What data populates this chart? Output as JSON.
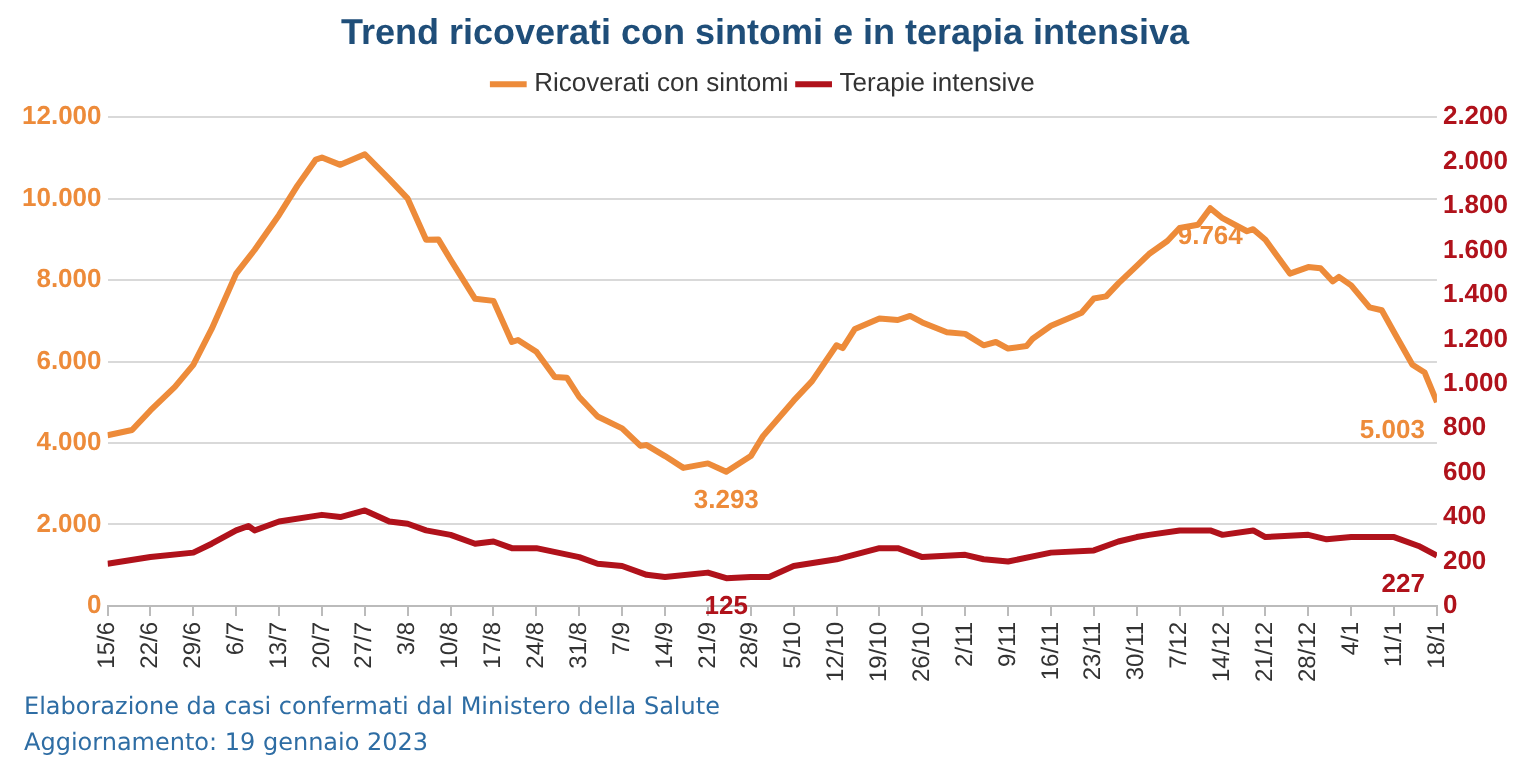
{
  "chart_data": {
    "type": "line",
    "title": "Trend ricoverati con sintomi e in terapia intensiva",
    "legend": "top",
    "grid": "y",
    "marker": "none",
    "xlim": [
      "2022-06-15",
      "2023-01-18"
    ],
    "xticks": [
      {
        "value": "2022-06-15",
        "label": "15/6"
      },
      {
        "value": "2022-06-22",
        "label": "22/6"
      },
      {
        "value": "2022-06-29",
        "label": "29/6"
      },
      {
        "value": "2022-07-06",
        "label": "6/7"
      },
      {
        "value": "2022-07-13",
        "label": "13/7"
      },
      {
        "value": "2022-07-20",
        "label": "20/7"
      },
      {
        "value": "2022-07-27",
        "label": "27/7"
      },
      {
        "value": "2022-08-03",
        "label": "3/8"
      },
      {
        "value": "2022-08-10",
        "label": "10/8"
      },
      {
        "value": "2022-08-17",
        "label": "17/8"
      },
      {
        "value": "2022-08-24",
        "label": "24/8"
      },
      {
        "value": "2022-08-31",
        "label": "31/8"
      },
      {
        "value": "2022-09-07",
        "label": "7/9"
      },
      {
        "value": "2022-09-14",
        "label": "14/9"
      },
      {
        "value": "2022-09-21",
        "label": "21/9"
      },
      {
        "value": "2022-09-28",
        "label": "28/9"
      },
      {
        "value": "2022-10-05",
        "label": "5/10"
      },
      {
        "value": "2022-10-12",
        "label": "12/10"
      },
      {
        "value": "2022-10-19",
        "label": "19/10"
      },
      {
        "value": "2022-10-26",
        "label": "26/10"
      },
      {
        "value": "2022-11-02",
        "label": "2/11"
      },
      {
        "value": "2022-11-09",
        "label": "9/11"
      },
      {
        "value": "2022-11-16",
        "label": "16/11"
      },
      {
        "value": "2022-11-23",
        "label": "23/11"
      },
      {
        "value": "2022-11-30",
        "label": "30/11"
      },
      {
        "value": "2022-12-07",
        "label": "7/12"
      },
      {
        "value": "2022-12-14",
        "label": "14/12"
      },
      {
        "value": "2022-12-21",
        "label": "21/12"
      },
      {
        "value": "2022-12-28",
        "label": "28/12"
      },
      {
        "value": "2023-01-04",
        "label": "4/1"
      },
      {
        "value": "2023-01-11",
        "label": "11/1"
      },
      {
        "value": "2023-01-18",
        "label": "18/1"
      }
    ],
    "ylim": [
      0,
      12000
    ],
    "yticks": [
      0,
      {
        "value": 2000,
        "label": "2.000"
      },
      {
        "value": 4000,
        "label": "4.000"
      },
      {
        "value": 6000,
        "label": "6.000"
      },
      {
        "value": 8000,
        "label": "8.000"
      },
      {
        "value": 10000,
        "label": "10.000"
      },
      {
        "value": 12000,
        "label": "12.000"
      }
    ],
    "y2lim": [
      0,
      2200
    ],
    "y2ticks": [
      0,
      200,
      400,
      600,
      800,
      {
        "value": 1000,
        "label": "1.000"
      },
      {
        "value": 1200,
        "label": "1.200"
      },
      {
        "value": 1400,
        "label": "1.400"
      },
      {
        "value": 1600,
        "label": "1.600"
      },
      {
        "value": 1800,
        "label": "1.800"
      },
      {
        "value": 2000,
        "label": "2.000"
      },
      {
        "value": 2200,
        "label": "2.200"
      }
    ],
    "series": [
      {
        "name": "Ricoverati con sintomi",
        "color": "#ed8b3a",
        "x": [
          "2022-06-15",
          "2022-06-19",
          "2022-06-22",
          "2022-06-26",
          "2022-06-29",
          "2022-07-02",
          "2022-07-06",
          "2022-07-09",
          "2022-07-13",
          "2022-07-16",
          "2022-07-19",
          "2022-07-20",
          "2022-07-23",
          "2022-07-27",
          "2022-07-31",
          "2022-08-03",
          "2022-08-06",
          "2022-08-08",
          "2022-08-10",
          "2022-08-14",
          "2022-08-17",
          "2022-08-20",
          "2022-08-21",
          "2022-08-24",
          "2022-08-27",
          "2022-08-29",
          "2022-08-31",
          "2022-09-03",
          "2022-09-07",
          "2022-09-10",
          "2022-09-11",
          "2022-09-14",
          "2022-09-17",
          "2022-09-21",
          "2022-09-24",
          "2022-09-28",
          "2022-09-30",
          "2022-10-05",
          "2022-10-08",
          "2022-10-12",
          "2022-10-13",
          "2022-10-15",
          "2022-10-19",
          "2022-10-22",
          "2022-10-24",
          "2022-10-26",
          "2022-10-30",
          "2022-11-02",
          "2022-11-05",
          "2022-11-07",
          "2022-11-09",
          "2022-11-12",
          "2022-11-13",
          "2022-11-16",
          "2022-11-19",
          "2022-11-21",
          "2022-11-23",
          "2022-11-25",
          "2022-11-27",
          "2022-11-30",
          "2022-12-02",
          "2022-12-05",
          "2022-12-07",
          "2022-12-10",
          "2022-12-12",
          "2022-12-14",
          "2022-12-18",
          "2022-12-19",
          "2022-12-21",
          "2022-12-25",
          "2022-12-28",
          "2022-12-30",
          "2023-01-01",
          "2023-01-02",
          "2023-01-04",
          "2023-01-07",
          "2023-01-09",
          "2023-01-11",
          "2023-01-14",
          "2023-01-16",
          "2023-01-18"
        ],
        "values": [
          4190,
          4320,
          4800,
          5380,
          5920,
          6800,
          8160,
          8740,
          9600,
          10320,
          10960,
          11010,
          10830,
          11090,
          10480,
          10000,
          8990,
          9000,
          8500,
          7540,
          7490,
          6480,
          6530,
          6240,
          5620,
          5600,
          5130,
          4650,
          4360,
          3930,
          3950,
          3680,
          3390,
          3500,
          3293,
          3680,
          4170,
          5040,
          5520,
          6400,
          6330,
          6800,
          7060,
          7020,
          7120,
          6960,
          6720,
          6680,
          6400,
          6480,
          6320,
          6380,
          6560,
          6880,
          7070,
          7200,
          7550,
          7600,
          7920,
          8350,
          8640,
          8960,
          9280,
          9360,
          9764,
          9520,
          9200,
          9250,
          8990,
          8160,
          8320,
          8290,
          7970,
          8080,
          7870,
          7330,
          7260,
          6720,
          5920,
          5730,
          5003
        ],
        "value_labels": [
          null,
          null,
          null,
          null,
          null,
          null,
          null,
          null,
          null,
          null,
          null,
          null,
          null,
          null,
          null,
          null,
          null,
          null,
          null,
          null,
          null,
          null,
          null,
          null,
          null,
          null,
          null,
          null,
          null,
          null,
          null,
          null,
          null,
          null,
          "3.293",
          null,
          null,
          null,
          null,
          null,
          null,
          null,
          null,
          null,
          null,
          null,
          null,
          null,
          null,
          null,
          null,
          null,
          null,
          null,
          null,
          null,
          null,
          null,
          null,
          null,
          null,
          null,
          null,
          null,
          "9.764",
          null,
          null,
          null,
          null,
          null,
          null,
          null,
          null,
          null,
          null,
          null,
          null,
          null,
          null,
          null,
          "5.003"
        ]
      },
      {
        "name": "Terapie intensive",
        "color": "#b0121b",
        "axis": "y2",
        "x": [
          "2022-06-15",
          "2022-06-22",
          "2022-06-29",
          "2022-07-02",
          "2022-07-06",
          "2022-07-08",
          "2022-07-09",
          "2022-07-13",
          "2022-07-20",
          "2022-07-23",
          "2022-07-27",
          "2022-07-31",
          "2022-08-03",
          "2022-08-06",
          "2022-08-10",
          "2022-08-14",
          "2022-08-17",
          "2022-08-20",
          "2022-08-24",
          "2022-08-31",
          "2022-09-03",
          "2022-09-07",
          "2022-09-11",
          "2022-09-14",
          "2022-09-21",
          "2022-09-24",
          "2022-09-28",
          "2022-10-01",
          "2022-10-05",
          "2022-10-12",
          "2022-10-19",
          "2022-10-22",
          "2022-10-26",
          "2022-11-02",
          "2022-11-05",
          "2022-11-09",
          "2022-11-16",
          "2022-11-23",
          "2022-11-27",
          "2022-11-30",
          "2022-12-02",
          "2022-12-07",
          "2022-12-12",
          "2022-12-14",
          "2022-12-19",
          "2022-12-21",
          "2022-12-28",
          "2022-12-31",
          "2023-01-04",
          "2023-01-11",
          "2023-01-15",
          "2023-01-18"
        ],
        "values": [
          190,
          220,
          240,
          280,
          340,
          360,
          340,
          380,
          410,
          400,
          430,
          380,
          370,
          340,
          320,
          280,
          290,
          260,
          260,
          220,
          190,
          180,
          140,
          130,
          150,
          125,
          130,
          130,
          180,
          210,
          260,
          260,
          220,
          230,
          210,
          200,
          240,
          250,
          290,
          310,
          320,
          340,
          340,
          320,
          340,
          310,
          320,
          300,
          310,
          310,
          270,
          227
        ],
        "value_labels": [
          null,
          null,
          null,
          null,
          null,
          null,
          null,
          null,
          null,
          null,
          null,
          null,
          null,
          null,
          null,
          null,
          null,
          null,
          null,
          null,
          null,
          null,
          null,
          null,
          null,
          "125",
          null,
          null,
          null,
          null,
          null,
          null,
          null,
          null,
          null,
          null,
          null,
          null,
          null,
          null,
          null,
          null,
          null,
          null,
          null,
          null,
          null,
          null,
          null,
          null,
          null,
          "227"
        ]
      }
    ],
    "annotations": [
      "Elaborazione da casi confermati dal Ministero della Salute",
      "Aggiornamento: 19 gennaio 2023"
    ]
  }
}
